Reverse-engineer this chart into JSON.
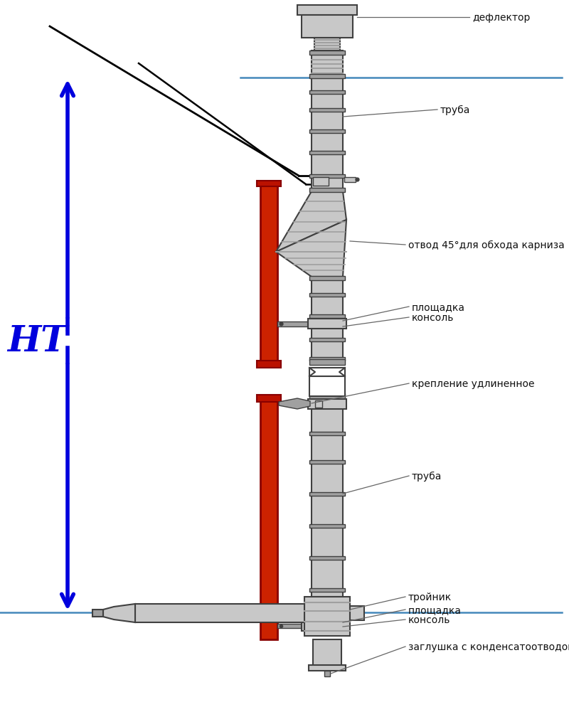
{
  "bg_color": "#ffffff",
  "lgray": "#c8c8c8",
  "mgray": "#a0a0a0",
  "dgray": "#404040",
  "red_pipe": "#cc2200",
  "dark_red": "#880000",
  "blue": "#0000dd",
  "roof_line": "#4488bb",
  "lc": "#111111",
  "alc": "#666666",
  "labels": {
    "deflector": "дефлектор",
    "truba1": "труба",
    "otvod": "отвод 45°для обхода карниза",
    "ploschadka1": "площадка",
    "konsol1": "консоль",
    "kreplenie": "крепление удлиненное",
    "truba2": "труба",
    "trojnik": "тройник",
    "ploschadka2": "площадка",
    "konsol2": "консоль",
    "zaglushka": "заглушка с конденсатоотводом"
  },
  "ht_label": "HТ",
  "figsize": [
    8.0,
    9.95
  ],
  "dpi": 100
}
